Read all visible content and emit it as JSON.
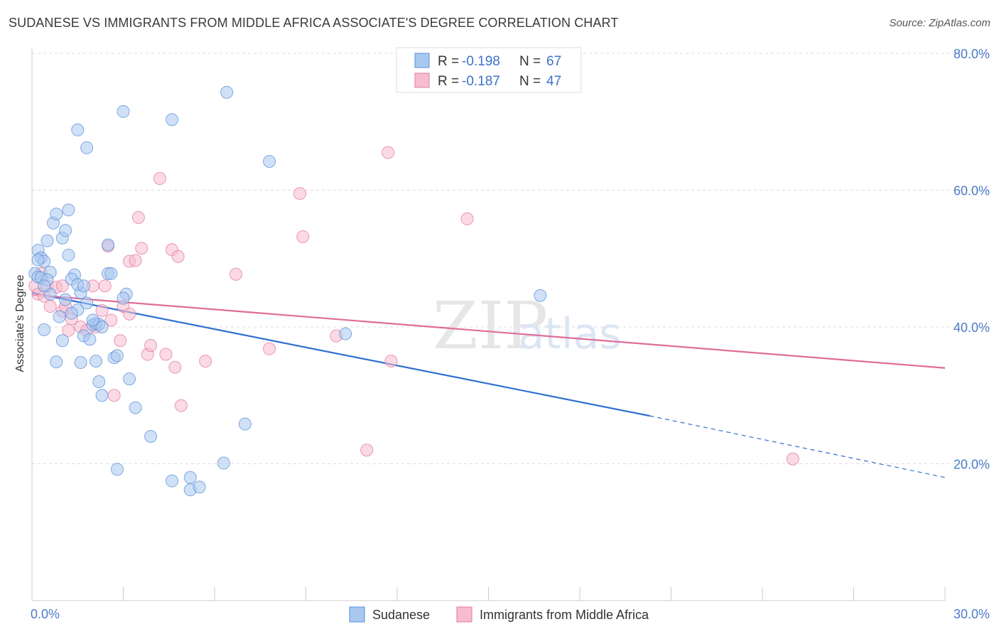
{
  "header": {
    "title": "SUDANESE VS IMMIGRANTS FROM MIDDLE AFRICA ASSOCIATE'S DEGREE CORRELATION CHART",
    "source": "Source: ZipAtlas.com"
  },
  "watermark": "ZIPatlas",
  "legend_top": {
    "rows": [
      {
        "r_label": "R = ",
        "r_value": "-0.198",
        "n_label": "N = ",
        "n_value": "67",
        "color": "#a9c8f0"
      },
      {
        "r_label": "R = ",
        "r_value": "-0.187",
        "n_label": "N = ",
        "n_value": "47",
        "color": "#f7bcd0"
      }
    ]
  },
  "chart_data": {
    "type": "scatter",
    "title": "SUDANESE VS IMMIGRANTS FROM MIDDLE AFRICA ASSOCIATE'S DEGREE CORRELATION CHART",
    "xlabel": "",
    "ylabel": "Associate's Degree",
    "xlim": [
      0,
      30
    ],
    "ylim": [
      0,
      80
    ],
    "x_tick_labels": [
      "0.0%",
      "30.0%"
    ],
    "y_tick_labels": [
      "20.0%",
      "40.0%",
      "60.0%",
      "80.0%"
    ],
    "y_ticks": [
      20,
      40,
      60,
      80
    ],
    "grid": true,
    "legend_position": "bottom",
    "series": [
      {
        "name": "Sudanese",
        "color": "#5b8fd6",
        "fill": "#a9c8f0",
        "trend": {
          "x": [
            0,
            20.3
          ],
          "y": [
            45.0,
            27.0
          ],
          "dashed_extension": {
            "x": [
              20.3,
              30
            ],
            "y": [
              27.0,
              18.0
            ]
          }
        },
        "points": [
          [
            0.1,
            47.8
          ],
          [
            0.2,
            47.3
          ],
          [
            0.2,
            51.2
          ],
          [
            0.3,
            50.1
          ],
          [
            0.4,
            49.6
          ],
          [
            0.3,
            47.2
          ],
          [
            0.6,
            48.0
          ],
          [
            0.4,
            39.6
          ],
          [
            0.5,
            46.9
          ],
          [
            0.7,
            55.2
          ],
          [
            0.8,
            56.5
          ],
          [
            0.5,
            52.6
          ],
          [
            0.6,
            44.8
          ],
          [
            1.0,
            53.0
          ],
          [
            1.1,
            54.1
          ],
          [
            1.2,
            57.1
          ],
          [
            1.2,
            50.5
          ],
          [
            0.9,
            41.5
          ],
          [
            1.0,
            38.0
          ],
          [
            1.4,
            47.6
          ],
          [
            1.3,
            47.0
          ],
          [
            1.6,
            45.0
          ],
          [
            1.5,
            42.5
          ],
          [
            1.3,
            42.0
          ],
          [
            1.5,
            46.2
          ],
          [
            1.7,
            46.0
          ],
          [
            1.8,
            43.5
          ],
          [
            1.6,
            34.8
          ],
          [
            1.7,
            38.7
          ],
          [
            1.9,
            38.2
          ],
          [
            2.0,
            40.3
          ],
          [
            2.1,
            40.5
          ],
          [
            2.2,
            40.4
          ],
          [
            2.3,
            40.0
          ],
          [
            2.1,
            35.0
          ],
          [
            2.2,
            32.0
          ],
          [
            2.3,
            30.0
          ],
          [
            2.7,
            35.5
          ],
          [
            2.8,
            35.8
          ],
          [
            2.5,
            52.0
          ],
          [
            2.5,
            47.8
          ],
          [
            2.6,
            47.8
          ],
          [
            3.1,
            44.8
          ],
          [
            3.0,
            44.2
          ],
          [
            3.2,
            32.4
          ],
          [
            3.0,
            71.5
          ],
          [
            1.5,
            68.8
          ],
          [
            1.8,
            66.2
          ],
          [
            4.6,
            70.3
          ],
          [
            6.4,
            74.3
          ],
          [
            7.8,
            64.2
          ],
          [
            2.8,
            19.2
          ],
          [
            3.4,
            28.2
          ],
          [
            3.9,
            24.0
          ],
          [
            4.6,
            17.5
          ],
          [
            5.2,
            18.0
          ],
          [
            5.2,
            16.2
          ],
          [
            5.5,
            16.6
          ],
          [
            6.3,
            20.1
          ],
          [
            7.0,
            25.8
          ],
          [
            10.3,
            39.0
          ],
          [
            16.7,
            44.6
          ],
          [
            0.8,
            34.9
          ],
          [
            0.2,
            49.8
          ],
          [
            0.4,
            46.0
          ],
          [
            1.1,
            44.0
          ],
          [
            2.0,
            41.0
          ]
        ]
      },
      {
        "name": "Immigrants from Middle Africa",
        "color": "#e07aa0",
        "fill": "#f7bcd0",
        "trend": {
          "x": [
            0,
            30
          ],
          "y": [
            44.7,
            34.0
          ]
        },
        "points": [
          [
            0.1,
            46.0
          ],
          [
            0.2,
            44.8
          ],
          [
            0.3,
            47.8
          ],
          [
            0.5,
            46.0
          ],
          [
            0.6,
            43.0
          ],
          [
            0.8,
            45.8
          ],
          [
            1.0,
            46.0
          ],
          [
            1.0,
            42.3
          ],
          [
            1.2,
            39.5
          ],
          [
            1.3,
            41.2
          ],
          [
            1.6,
            40.0
          ],
          [
            1.8,
            39.5
          ],
          [
            2.0,
            46.0
          ],
          [
            2.1,
            40.0
          ],
          [
            2.3,
            42.4
          ],
          [
            2.5,
            51.8
          ],
          [
            2.6,
            41.0
          ],
          [
            2.7,
            30.0
          ],
          [
            2.9,
            38.0
          ],
          [
            3.0,
            43.0
          ],
          [
            3.2,
            49.6
          ],
          [
            3.4,
            49.7
          ],
          [
            3.2,
            41.9
          ],
          [
            3.5,
            56.0
          ],
          [
            3.6,
            51.5
          ],
          [
            3.8,
            36.0
          ],
          [
            3.9,
            37.3
          ],
          [
            4.2,
            61.7
          ],
          [
            4.4,
            36.0
          ],
          [
            4.6,
            51.3
          ],
          [
            4.7,
            34.1
          ],
          [
            4.8,
            50.3
          ],
          [
            4.9,
            28.5
          ],
          [
            5.7,
            35.0
          ],
          [
            6.7,
            47.7
          ],
          [
            7.8,
            36.8
          ],
          [
            8.8,
            59.5
          ],
          [
            8.9,
            53.2
          ],
          [
            10.0,
            38.7
          ],
          [
            11.0,
            22.0
          ],
          [
            11.7,
            65.5
          ],
          [
            11.8,
            35.0
          ],
          [
            14.3,
            55.8
          ],
          [
            25.0,
            20.7
          ],
          [
            0.4,
            44.5
          ],
          [
            1.1,
            43.0
          ],
          [
            2.4,
            46.0
          ]
        ]
      }
    ]
  },
  "legend_bottom": {
    "items": [
      {
        "label": "Sudanese",
        "color": "#a9c8f0",
        "stroke": "#5b8fd6"
      },
      {
        "label": "Immigrants from Middle Africa",
        "color": "#f7bcd0",
        "stroke": "#e07aa0"
      }
    ]
  }
}
